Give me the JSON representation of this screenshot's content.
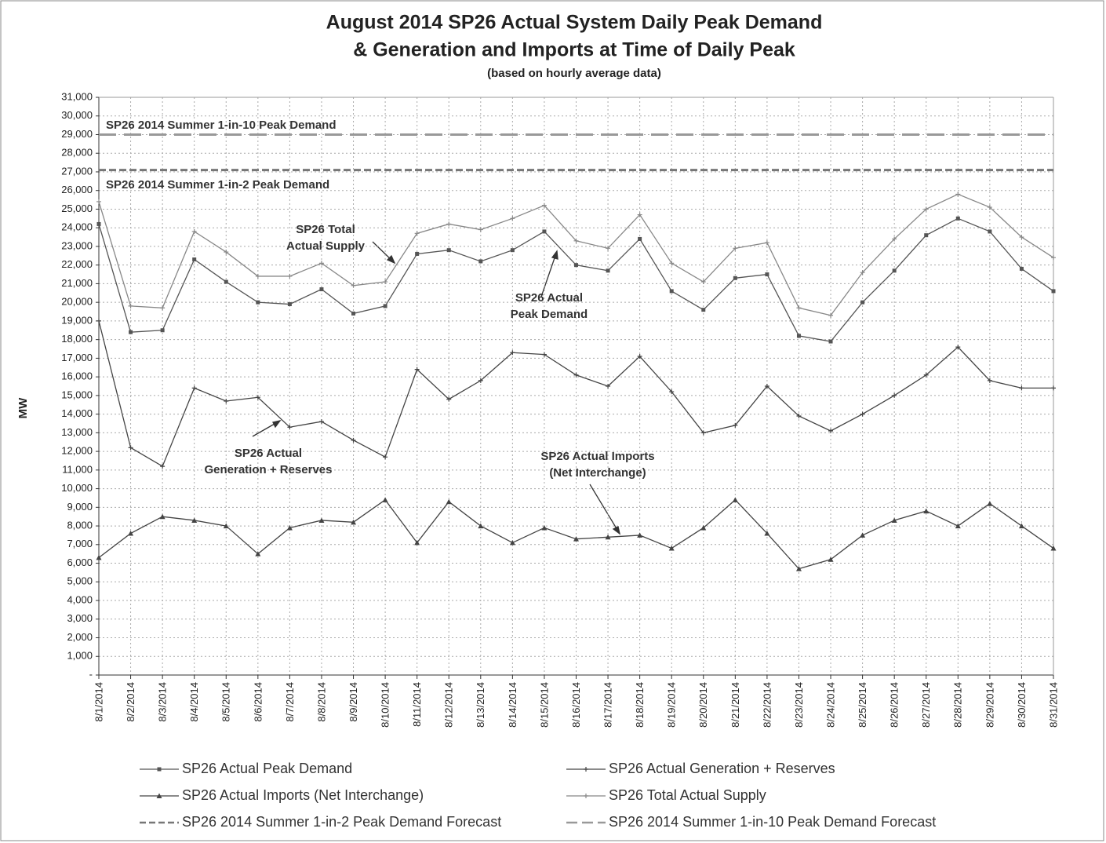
{
  "chart_data": {
    "type": "line",
    "title": [
      "August 2014 SP26 Actual System Daily Peak Demand",
      "& Generation and Imports at Time of Daily Peak"
    ],
    "subtitle": "(based on hourly average data)",
    "y_label": "MW",
    "categories": [
      "8/1/2014",
      "8/2/2014",
      "8/3/2014",
      "8/4/2014",
      "8/5/2014",
      "8/6/2014",
      "8/7/2014",
      "8/8/2014",
      "8/9/2014",
      "8/10/2014",
      "8/11/2014",
      "8/12/2014",
      "8/13/2014",
      "8/14/2014",
      "8/15/2014",
      "8/16/2014",
      "8/17/2014",
      "8/18/2014",
      "8/19/2014",
      "8/20/2014",
      "8/21/2014",
      "8/22/2014",
      "8/23/2014",
      "8/24/2014",
      "8/25/2014",
      "8/26/2014",
      "8/27/2014",
      "8/28/2014",
      "8/29/2014",
      "8/30/2014",
      "8/31/2014"
    ],
    "series": [
      {
        "name": "SP26 Actual Peak Demand",
        "color": "#555555",
        "marker": "square",
        "dash": "solid",
        "values": [
          24200,
          18400,
          18500,
          22300,
          21100,
          20000,
          19900,
          20700,
          19400,
          19800,
          22600,
          22800,
          22200,
          22800,
          23800,
          22000,
          21700,
          23400,
          20600,
          19600,
          21300,
          21500,
          18200,
          17900,
          20000,
          21700,
          23600,
          24500,
          23800,
          21800,
          20600
        ]
      },
      {
        "name": "SP26 Actual Generation + Reserves",
        "color": "#444444",
        "marker": "plus",
        "dash": "solid",
        "values": [
          19000,
          12200,
          11200,
          15400,
          14700,
          14900,
          13300,
          13600,
          12600,
          11700,
          16400,
          14800,
          15800,
          17300,
          17200,
          16100,
          15500,
          17100,
          15200,
          13000,
          13400,
          15500,
          13900,
          13100,
          14000,
          15000,
          16100,
          17600,
          15800,
          15400,
          15400
        ]
      },
      {
        "name": "SP26 Actual Imports (Net Interchange)",
        "color": "#444444",
        "marker": "triangle",
        "dash": "solid",
        "values": [
          6300,
          7600,
          8500,
          8300,
          8000,
          6500,
          7900,
          8300,
          8200,
          9400,
          7100,
          9300,
          8000,
          7100,
          7900,
          7300,
          7400,
          7500,
          6800,
          7900,
          9400,
          7600,
          5700,
          6200,
          7500,
          8300,
          8800,
          8000,
          9200,
          8000,
          6800
        ]
      },
      {
        "name": "SP26 Total Actual Supply",
        "color": "#888888",
        "marker": "plus",
        "dash": "solid",
        "values": [
          25400,
          19800,
          19700,
          23800,
          22700,
          21400,
          21400,
          22100,
          20900,
          21100,
          23700,
          24200,
          23900,
          24500,
          25200,
          23300,
          22900,
          24700,
          22100,
          21100,
          22900,
          23200,
          19700,
          19300,
          21600,
          23400,
          25000,
          25800,
          25100,
          23500,
          22400
        ]
      },
      {
        "name": "SP26 2014 Summer 1-in-2 Peak Demand Forecast",
        "color": "#777777",
        "marker": "none",
        "dash": "dashed",
        "values": [
          27100,
          27100,
          27100,
          27100,
          27100,
          27100,
          27100,
          27100,
          27100,
          27100,
          27100,
          27100,
          27100,
          27100,
          27100,
          27100,
          27100,
          27100,
          27100,
          27100,
          27100,
          27100,
          27100,
          27100,
          27100,
          27100,
          27100,
          27100,
          27100,
          27100,
          27100
        ]
      },
      {
        "name": "SP26 2014 Summer 1-in-10 Peak Demand Forecast",
        "color": "#999999",
        "marker": "none",
        "dash": "long-dashed",
        "values": [
          29000,
          29000,
          29000,
          29000,
          29000,
          29000,
          29000,
          29000,
          29000,
          29000,
          29000,
          29000,
          29000,
          29000,
          29000,
          29000,
          29000,
          29000,
          29000,
          29000,
          29000,
          29000,
          29000,
          29000,
          29000,
          29000,
          29000,
          29000,
          29000,
          29000,
          29000
        ]
      }
    ],
    "annotations": [
      [
        "SP26 2014  Summer 1-in-10 Peak Demand"
      ],
      [
        "SP26 2014  Summer 1-in-2 Peak Demand"
      ],
      [
        "SP26 Total",
        "Actual Supply"
      ],
      [
        "SP26 Actual",
        "Peak Demand"
      ],
      [
        "SP26 Actual",
        "Generation + Reserves"
      ],
      [
        "SP26 Actual Imports",
        "(Net Interchange)"
      ]
    ],
    "ylim": [
      0,
      31000
    ],
    "yticks": [
      {
        "value": 0,
        "label": "-"
      },
      {
        "value": 1000,
        "label": "1,000"
      },
      {
        "value": 2000,
        "label": "2,000"
      },
      {
        "value": 3000,
        "label": "3,000"
      },
      {
        "value": 4000,
        "label": "4,000"
      },
      {
        "value": 5000,
        "label": "5,000"
      },
      {
        "value": 6000,
        "label": "6,000"
      },
      {
        "value": 7000,
        "label": "7,000"
      },
      {
        "value": 8000,
        "label": "8,000"
      },
      {
        "value": 9000,
        "label": "9,000"
      },
      {
        "value": 10000,
        "label": "10,000"
      },
      {
        "value": 11000,
        "label": "11,000"
      },
      {
        "value": 12000,
        "label": "12,000"
      },
      {
        "value": 13000,
        "label": "13,000"
      },
      {
        "value": 14000,
        "label": "14,000"
      },
      {
        "value": 15000,
        "label": "15,000"
      },
      {
        "value": 16000,
        "label": "16,000"
      },
      {
        "value": 17000,
        "label": "17,000"
      },
      {
        "value": 18000,
        "label": "18,000"
      },
      {
        "value": 19000,
        "label": "19,000"
      },
      {
        "value": 20000,
        "label": "20,000"
      },
      {
        "value": 21000,
        "label": "21,000"
      },
      {
        "value": 22000,
        "label": "22,000"
      },
      {
        "value": 23000,
        "label": "23,000"
      },
      {
        "value": 24000,
        "label": "24,000"
      },
      {
        "value": 25000,
        "label": "25,000"
      },
      {
        "value": 26000,
        "label": "26,000"
      },
      {
        "value": 27000,
        "label": "27,000"
      },
      {
        "value": 28000,
        "label": "28,000"
      },
      {
        "value": 29000,
        "label": "29,000"
      },
      {
        "value": 30000,
        "label": "30,000"
      },
      {
        "value": 31000,
        "label": "31,000"
      }
    ],
    "grid": true,
    "legend": "bottom"
  }
}
